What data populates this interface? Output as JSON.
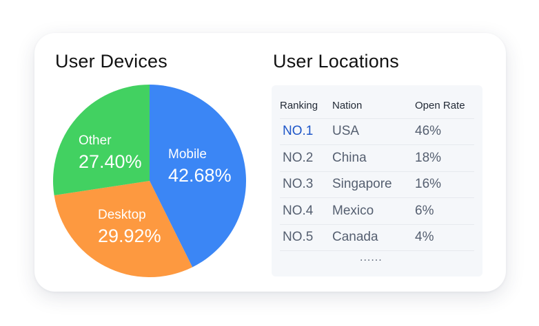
{
  "chart_data": [
    {
      "type": "pie",
      "title": "User Devices",
      "slices": [
        {
          "label": "Mobile",
          "value": 42.68,
          "value_label": "42.68%",
          "color": "#3b86f5"
        },
        {
          "label": "Desktop",
          "value": 29.92,
          "value_label": "29.92%",
          "color": "#fd9940"
        },
        {
          "label": "Other",
          "value": 27.4,
          "value_label": "27.40%",
          "color": "#42d161"
        }
      ]
    },
    {
      "type": "table",
      "title": "User Locations",
      "columns": [
        "Ranking",
        "Nation",
        "Open Rate"
      ],
      "rows": [
        [
          "NO.1",
          "USA",
          "46%"
        ],
        [
          "NO.2",
          "China",
          "18%"
        ],
        [
          "NO.3",
          "Singapore",
          "16%"
        ],
        [
          "NO.4",
          "Mexico",
          "6%"
        ],
        [
          "NO.5",
          "Canada",
          "4%"
        ]
      ],
      "highlight_color": "#1e56c8",
      "more_indicator": "......"
    }
  ]
}
